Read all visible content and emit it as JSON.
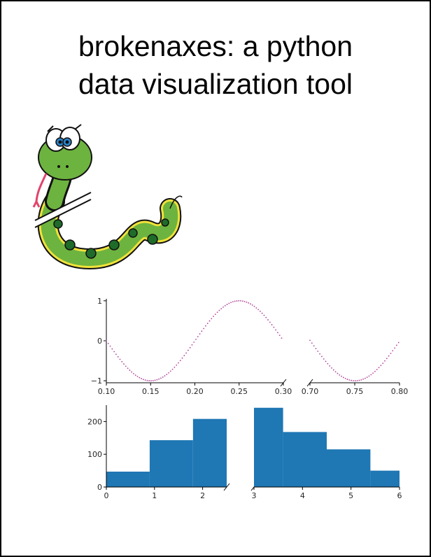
{
  "poster": {
    "title_line1": "brokenaxes: a python",
    "title_line2": "data visualization tool"
  },
  "mascot": {
    "icon": "snake-mascot-icon"
  },
  "chart_data": [
    {
      "type": "scatter",
      "marker": "small dots",
      "color": "#b0449a",
      "function": "sin(31.4 * x)",
      "x_segments": [
        [
          0.1,
          0.3
        ],
        [
          0.7,
          0.8
        ]
      ],
      "x_ticks": [
        {
          "value": 0.1,
          "label": "0.10"
        },
        {
          "value": 0.15,
          "label": "0.15"
        },
        {
          "value": 0.2,
          "label": "0.20"
        },
        {
          "value": 0.25,
          "label": "0.25"
        },
        {
          "value": 0.3,
          "label": "0.30"
        },
        {
          "value": 0.7,
          "label": "0.70"
        },
        {
          "value": 0.75,
          "label": "0.75"
        },
        {
          "value": 0.8,
          "label": "0.80"
        }
      ],
      "ylim": [
        -1.05,
        1.05
      ],
      "y_ticks": [
        {
          "value": 1,
          "label": "1"
        },
        {
          "value": 0,
          "label": "0"
        },
        {
          "value": -1,
          "label": "−1"
        }
      ]
    },
    {
      "type": "bar",
      "style": "histogram",
      "color": "#1f77b4",
      "x_segments": [
        [
          0,
          2.5
        ],
        [
          3,
          6
        ]
      ],
      "bins": [
        {
          "x0": 0.0,
          "x1": 0.9,
          "value": 47
        },
        {
          "x0": 0.9,
          "x1": 1.8,
          "value": 143
        },
        {
          "x0": 1.8,
          "x1": 2.5,
          "value": 208
        },
        {
          "x0": 3.0,
          "x1": 3.6,
          "value": 242
        },
        {
          "x0": 3.6,
          "x1": 4.5,
          "value": 168
        },
        {
          "x0": 4.5,
          "x1": 5.4,
          "value": 115
        },
        {
          "x0": 5.4,
          "x1": 6.0,
          "value": 50
        }
      ],
      "ylim": [
        0,
        250
      ],
      "x_ticks": [
        {
          "value": 0,
          "label": "0"
        },
        {
          "value": 1,
          "label": "1"
        },
        {
          "value": 2,
          "label": "2"
        },
        {
          "value": 3,
          "label": "3"
        },
        {
          "value": 4,
          "label": "4"
        },
        {
          "value": 5,
          "label": "5"
        },
        {
          "value": 6,
          "label": "6"
        }
      ],
      "y_ticks": [
        {
          "value": 0,
          "label": "0"
        },
        {
          "value": 100,
          "label": "100"
        },
        {
          "value": 200,
          "label": "200"
        }
      ]
    }
  ]
}
